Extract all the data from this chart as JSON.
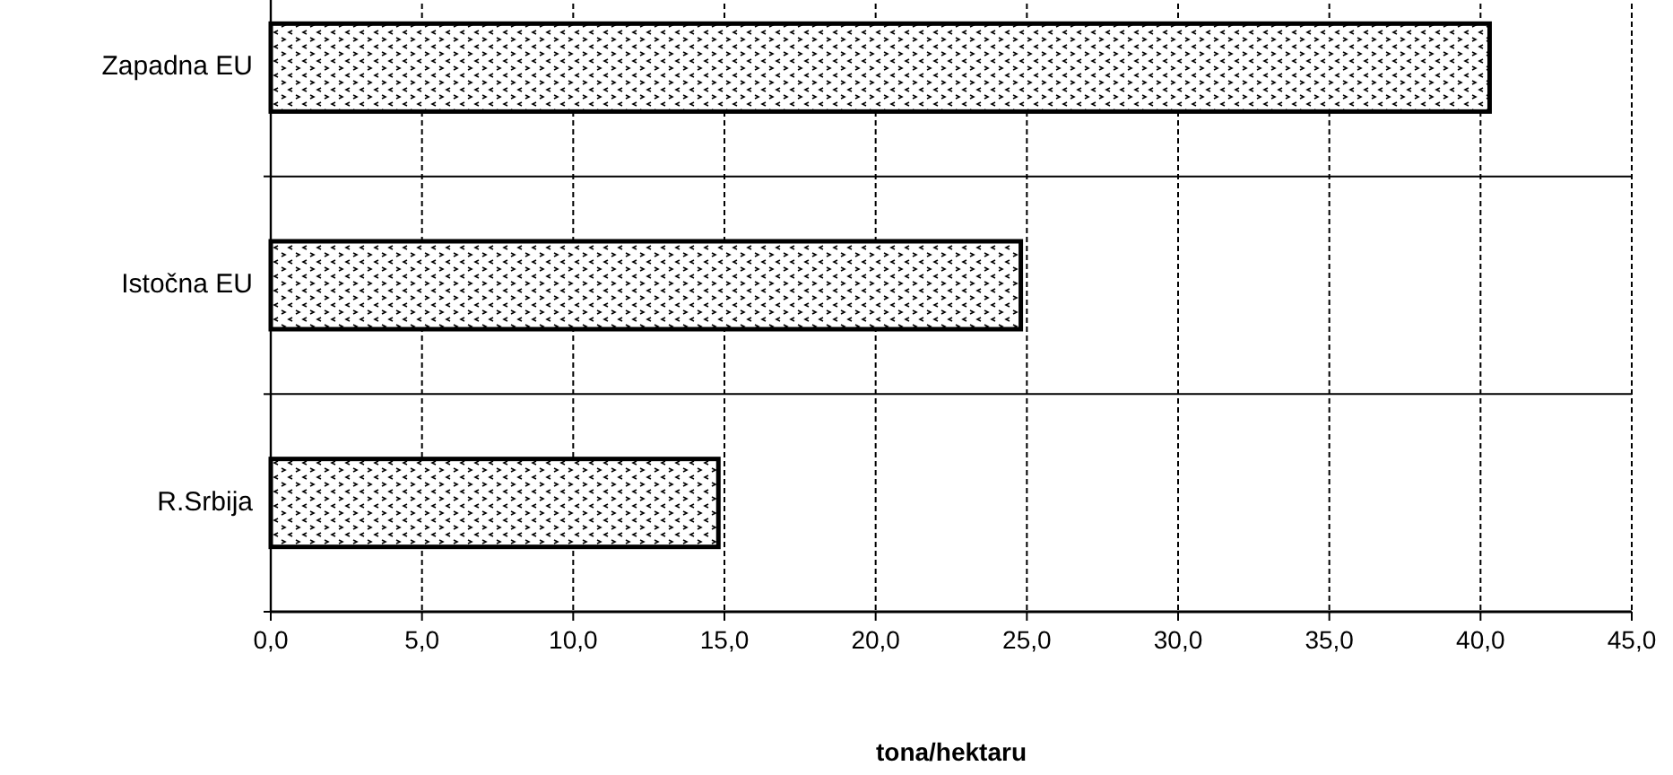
{
  "chart_data": {
    "type": "bar",
    "orientation": "horizontal",
    "xlabel": "tona/hektaru",
    "categories": [
      "Zapadna EU",
      "Istočna EU",
      "R.Srbija"
    ],
    "values": [
      40.3,
      24.8,
      14.8
    ],
    "color": "#000000",
    "xlim": [
      0,
      45
    ],
    "xticks": [
      {
        "value": 0,
        "label": "0,0"
      },
      {
        "value": 5,
        "label": "5,0"
      },
      {
        "value": 10,
        "label": "10,0"
      },
      {
        "value": 15,
        "label": "15,0"
      },
      {
        "value": 20,
        "label": "20,0"
      },
      {
        "value": 25,
        "label": "25,0"
      },
      {
        "value": 30,
        "label": "30,0"
      },
      {
        "value": 35,
        "label": "35,0"
      },
      {
        "value": 40,
        "label": "40,0"
      },
      {
        "value": 45,
        "label": "45,0"
      }
    ],
    "grid": true
  }
}
